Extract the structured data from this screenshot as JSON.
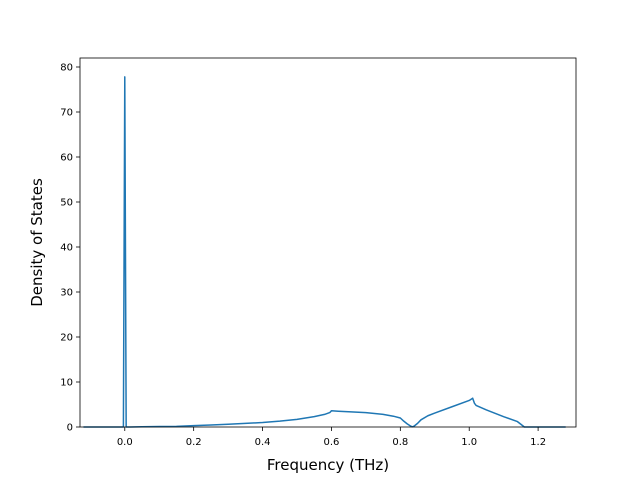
{
  "chart_data": {
    "type": "line",
    "title": "",
    "xlabel": "Frequency (THz)",
    "ylabel": "Density of States",
    "xlim": [
      -0.13,
      1.31
    ],
    "ylim": [
      0,
      82
    ],
    "xticks": [
      0.0,
      0.2,
      0.4,
      0.6,
      0.8,
      1.0,
      1.2
    ],
    "xtick_labels": [
      "0.0",
      "0.2",
      "0.4",
      "0.6",
      "0.8",
      "1.0",
      "1.2"
    ],
    "yticks": [
      0,
      10,
      20,
      30,
      40,
      50,
      60,
      70,
      80
    ],
    "ytick_labels": [
      "0",
      "10",
      "20",
      "30",
      "40",
      "50",
      "60",
      "70",
      "80"
    ],
    "grid": false,
    "legend": "none",
    "line_color": "#1f77b4",
    "series": [
      {
        "x": [
          -0.12,
          -0.05,
          -0.006,
          -0.004,
          0.0,
          0.004,
          0.006,
          0.015,
          0.05,
          0.1,
          0.15,
          0.2,
          0.25,
          0.3,
          0.35,
          0.4,
          0.45,
          0.5,
          0.55,
          0.58,
          0.595,
          0.6,
          0.62,
          0.65,
          0.7,
          0.75,
          0.78,
          0.8,
          0.81,
          0.82,
          0.83,
          0.835,
          0.84,
          0.85,
          0.86,
          0.88,
          0.9,
          0.95,
          1.0,
          1.01,
          1.015,
          1.02,
          1.05,
          1.1,
          1.14,
          1.155,
          1.16,
          1.2,
          1.28
        ],
        "y": [
          0,
          0,
          0,
          0,
          77.8,
          0,
          0,
          0,
          0.05,
          0.1,
          0.15,
          0.3,
          0.45,
          0.6,
          0.8,
          1.0,
          1.3,
          1.7,
          2.3,
          2.8,
          3.2,
          3.6,
          3.5,
          3.4,
          3.2,
          2.8,
          2.4,
          2.0,
          1.3,
          0.7,
          0.2,
          0.05,
          0.2,
          0.8,
          1.6,
          2.5,
          3.1,
          4.5,
          5.9,
          6.4,
          5.3,
          4.8,
          3.8,
          2.3,
          1.2,
          0.3,
          0,
          0,
          0
        ]
      }
    ]
  }
}
